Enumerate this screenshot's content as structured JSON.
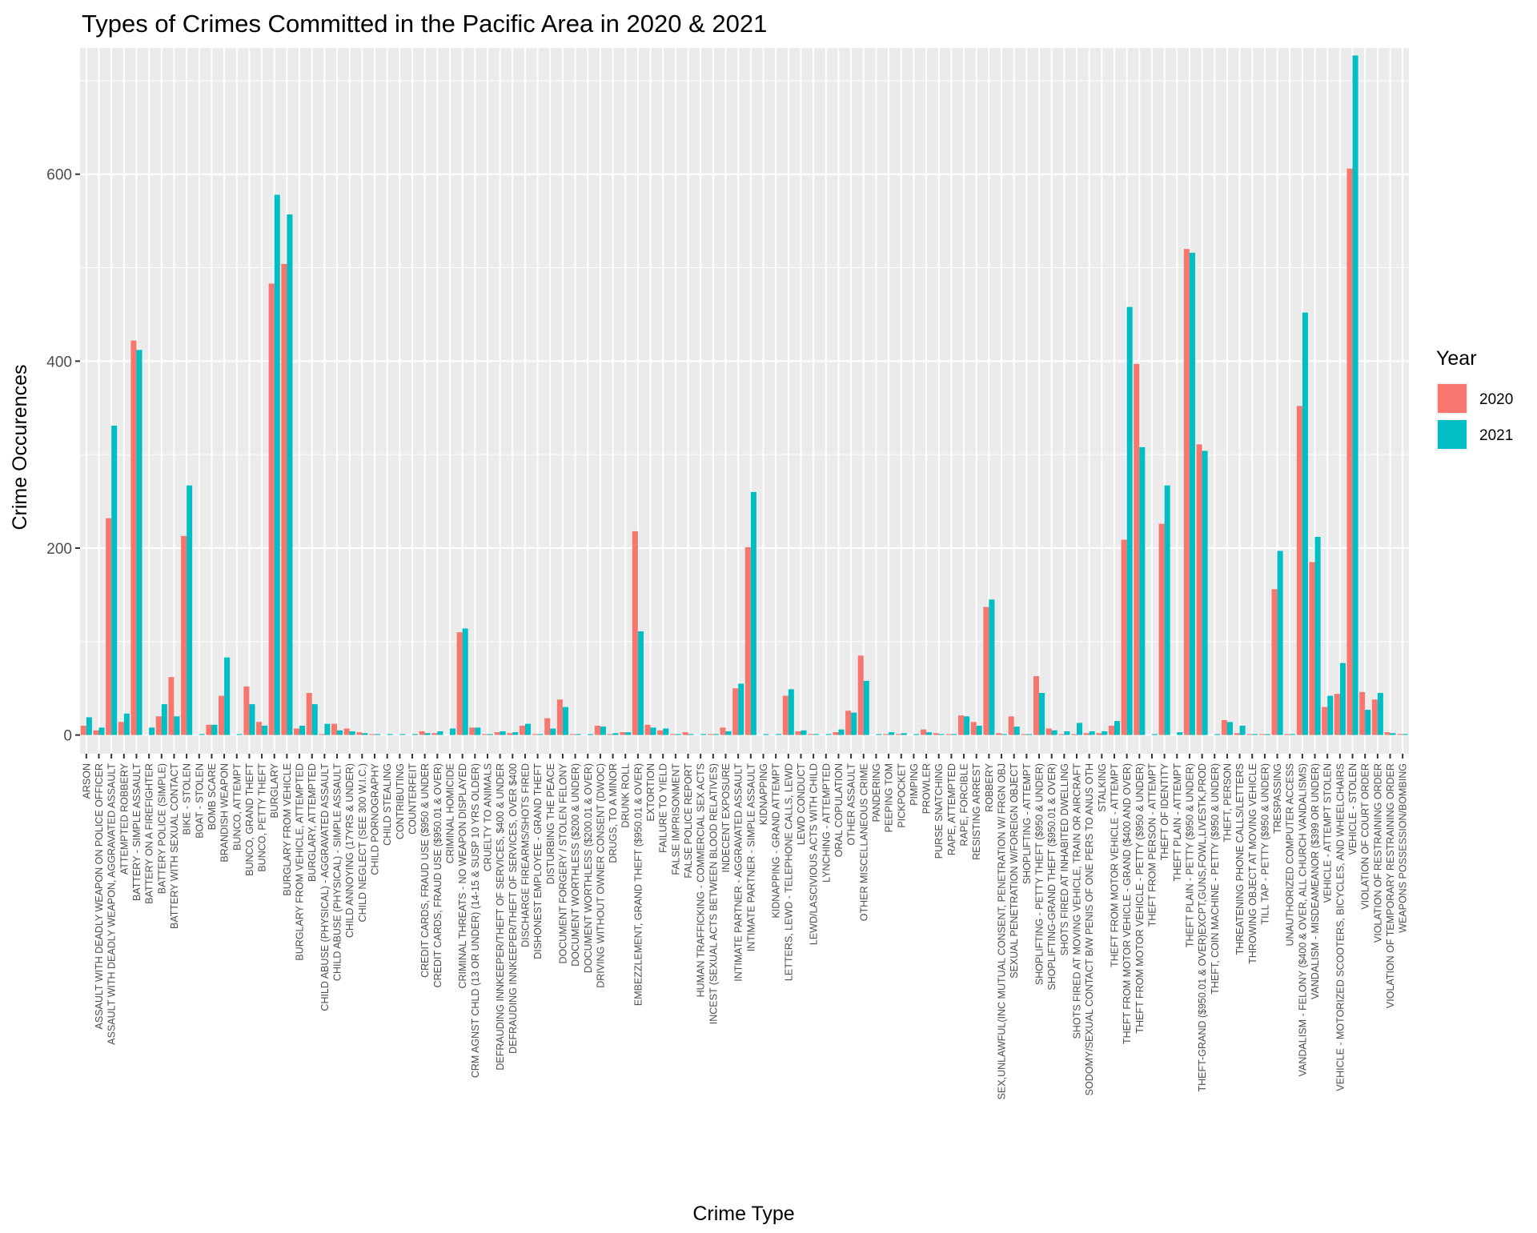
{
  "chart_data": {
    "type": "bar",
    "title": "Types of Crimes Committed in the Pacific Area in 2020 & 2021",
    "xlabel": "Crime Type",
    "ylabel": "Crime Occurences",
    "ylim": [
      -20,
      735
    ],
    "yticks": [
      0,
      200,
      400,
      600
    ],
    "grid": true,
    "legend": {
      "title": "Year",
      "placement": "right"
    },
    "categories": [
      "ARSON",
      "ASSAULT WITH DEADLY WEAPON ON POLICE OFFICER",
      "ASSAULT WITH DEADLY WEAPON, AGGRAVATED ASSAULT",
      "ATTEMPTED ROBBERY",
      "BATTERY - SIMPLE ASSAULT",
      "BATTERY ON A FIREFIGHTER",
      "BATTERY POLICE (SIMPLE)",
      "BATTERY WITH SEXUAL CONTACT",
      "BIKE - STOLEN",
      "BOAT - STOLEN",
      "BOMB SCARE",
      "BRANDISH WEAPON",
      "BUNCO, ATTEMPT",
      "BUNCO, GRAND THEFT",
      "BUNCO, PETTY THEFT",
      "BURGLARY",
      "BURGLARY FROM VEHICLE",
      "BURGLARY FROM VEHICLE, ATTEMPTED",
      "BURGLARY, ATTEMPTED",
      "CHILD ABUSE (PHYSICAL) - AGGRAVATED ASSAULT",
      "CHILD ABUSE (PHYSICAL) - SIMPLE ASSAULT",
      "CHILD ANNOYING (17YRS & UNDER)",
      "CHILD NEGLECT (SEE 300 W.I.C.)",
      "CHILD PORNOGRAPHY",
      "CHILD STEALING",
      "CONTRIBUTING",
      "COUNTERFEIT",
      "CREDIT CARDS, FRAUD USE ($950 & UNDER",
      "CREDIT CARDS, FRAUD USE ($950.01 & OVER)",
      "CRIMINAL HOMICIDE",
      "CRIMINAL THREATS - NO WEAPON DISPLAYED",
      "CRM AGNST CHLD (13 OR UNDER) (14-15 & SUSP 10 YRS OLDER)",
      "CRUELTY TO ANIMALS",
      "DEFRAUDING INNKEEPER/THEFT OF SERVICES, $400 & UNDER",
      "DEFRAUDING INNKEEPER/THEFT OF SERVICES, OVER $400",
      "DISCHARGE FIREARMS/SHOTS FIRED",
      "DISHONEST EMPLOYEE - GRAND THEFT",
      "DISTURBING THE PEACE",
      "DOCUMENT FORGERY / STOLEN FELONY",
      "DOCUMENT WORTHLESS ($200 & UNDER)",
      "DOCUMENT WORTHLESS ($200.01 & OVER)",
      "DRIVING WITHOUT OWNER CONSENT (DWOC)",
      "DRUGS, TO A MINOR",
      "DRUNK ROLL",
      "EMBEZZLEMENT, GRAND THEFT ($950.01 & OVER)",
      "EXTORTION",
      "FAILURE TO YIELD",
      "FALSE IMPRISONMENT",
      "FALSE POLICE REPORT",
      "HUMAN TRAFFICKING - COMMERCIAL SEX ACTS",
      "INCEST (SEXUAL ACTS BETWEEN BLOOD RELATIVES)",
      "INDECENT EXPOSURE",
      "INTIMATE PARTNER - AGGRAVATED ASSAULT",
      "INTIMATE PARTNER - SIMPLE ASSAULT",
      "KIDNAPPING",
      "KIDNAPPING - GRAND ATTEMPT",
      "LETTERS, LEWD  -  TELEPHONE CALLS, LEWD",
      "LEWD CONDUCT",
      "LEWD/LASCIVIOUS ACTS WITH CHILD",
      "LYNCHING - ATTEMPTED",
      "ORAL COPULATION",
      "OTHER ASSAULT",
      "OTHER MISCELLANEOUS CRIME",
      "PANDERING",
      "PEEPING TOM",
      "PICKPOCKET",
      "PIMPING",
      "PROWLER",
      "PURSE SNATCHING",
      "RAPE, ATTEMPTED",
      "RAPE, FORCIBLE",
      "RESISTING ARREST",
      "ROBBERY",
      "SEX,UNLAWFUL(INC MUTUAL CONSENT, PENETRATION W/ FRGN OBJ",
      "SEXUAL PENETRATION W/FOREIGN OBJECT",
      "SHOPLIFTING - ATTEMPT",
      "SHOPLIFTING - PETTY THEFT ($950 & UNDER)",
      "SHOPLIFTING-GRAND THEFT ($950.01 & OVER)",
      "SHOTS FIRED AT INHABITED DWELLING",
      "SHOTS FIRED AT MOVING VEHICLE, TRAIN OR AIRCRAFT",
      "SODOMY/SEXUAL CONTACT B/W PENIS OF ONE PERS TO ANUS OTH",
      "STALKING",
      "THEFT FROM MOTOR VEHICLE - ATTEMPT",
      "THEFT FROM MOTOR VEHICLE - GRAND ($400 AND OVER)",
      "THEFT FROM MOTOR VEHICLE - PETTY ($950 & UNDER)",
      "THEFT FROM PERSON - ATTEMPT",
      "THEFT OF IDENTITY",
      "THEFT PLAIN - ATTEMPT",
      "THEFT PLAIN - PETTY ($950 & UNDER)",
      "THEFT-GRAND ($950.01 & OVER)EXCPT,GUNS,FOWL,LIVESTK,PROD",
      "THEFT, COIN MACHINE - PETTY ($950 & UNDER)",
      "THEFT, PERSON",
      "THREATENING PHONE CALLS/LETTERS",
      "THROWING OBJECT AT MOVING VEHICLE",
      "TILL TAP - PETTY ($950 & UNDER)",
      "TRESPASSING",
      "UNAUTHORIZED COMPUTER ACCESS",
      "VANDALISM - FELONY ($400 & OVER, ALL CHURCH VANDALISMS)",
      "VANDALISM - MISDEAMEANOR ($399 OR UNDER)",
      "VEHICLE - ATTEMPT STOLEN",
      "VEHICLE - MOTORIZED SCOOTERS, BICYCLES, AND WHEELCHAIRS",
      "VEHICLE - STOLEN",
      "VIOLATION OF COURT ORDER",
      "VIOLATION OF RESTRAINING ORDER",
      "VIOLATION OF TEMPORARY RESTRAINING ORDER",
      "WEAPONS POSSESSION/BOMBING"
    ],
    "series": [
      {
        "name": "2020",
        "color": "#F8766D",
        "values": [
          10,
          5,
          232,
          14,
          422,
          0,
          20,
          62,
          213,
          0,
          11,
          42,
          0,
          52,
          14,
          483,
          504,
          7,
          45,
          1,
          12,
          7,
          3,
          1,
          0,
          0,
          0,
          4,
          2,
          0,
          110,
          8,
          1,
          3,
          2,
          10,
          1,
          18,
          38,
          1,
          0,
          10,
          1,
          3,
          218,
          11,
          5,
          1,
          3,
          0,
          1,
          8,
          50,
          201,
          0,
          0,
          42,
          4,
          1,
          0,
          3,
          26,
          85,
          0,
          1,
          1,
          0,
          6,
          2,
          1,
          21,
          14,
          137,
          2,
          20,
          1,
          63,
          7,
          1,
          1,
          2,
          2,
          10,
          209,
          397,
          0,
          226,
          0,
          520,
          311,
          0,
          16,
          2,
          1,
          1,
          156,
          1,
          352,
          185,
          30,
          44,
          606,
          46,
          38,
          3,
          1
        ]
      },
      {
        "name": "2021",
        "color": "#00BFC4",
        "values": [
          19,
          8,
          331,
          23,
          412,
          8,
          33,
          20,
          267,
          1,
          11,
          83,
          1,
          33,
          10,
          578,
          557,
          10,
          33,
          12,
          5,
          4,
          2,
          1,
          1,
          1,
          1,
          2,
          4,
          7,
          114,
          8,
          1,
          4,
          3,
          12,
          1,
          7,
          30,
          1,
          1,
          9,
          2,
          3,
          111,
          8,
          7,
          1,
          1,
          1,
          1,
          4,
          55,
          260,
          1,
          1,
          49,
          5,
          1,
          1,
          6,
          24,
          58,
          1,
          3,
          2,
          1,
          3,
          1,
          1,
          20,
          10,
          145,
          1,
          9,
          1,
          45,
          5,
          4,
          13,
          4,
          4,
          15,
          458,
          308,
          1,
          267,
          3,
          516,
          304,
          1,
          14,
          10,
          1,
          1,
          197,
          1,
          452,
          212,
          42,
          77,
          727,
          27,
          45,
          2,
          1
        ]
      }
    ]
  }
}
